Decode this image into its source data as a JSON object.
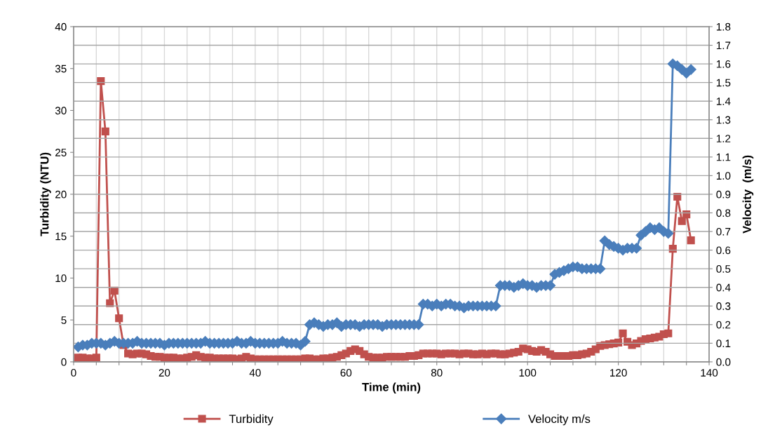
{
  "chart_data": {
    "type": "line",
    "xlabel": "Time (min)",
    "ylabel": "Turbidity (NTU)",
    "y2label": "Velocity  (m/s)",
    "x": [
      1,
      2,
      3,
      4,
      5,
      6,
      7,
      8,
      9,
      10,
      11,
      12,
      13,
      14,
      15,
      16,
      17,
      18,
      19,
      20,
      21,
      22,
      23,
      24,
      25,
      26,
      27,
      28,
      29,
      30,
      31,
      32,
      33,
      34,
      35,
      36,
      37,
      38,
      39,
      40,
      41,
      42,
      43,
      44,
      45,
      46,
      47,
      48,
      49,
      50,
      51,
      52,
      53,
      54,
      55,
      56,
      57,
      58,
      59,
      60,
      61,
      62,
      63,
      64,
      65,
      66,
      67,
      68,
      69,
      70,
      71,
      72,
      73,
      74,
      75,
      76,
      77,
      78,
      79,
      80,
      81,
      82,
      83,
      84,
      85,
      86,
      87,
      88,
      89,
      90,
      91,
      92,
      93,
      94,
      95,
      96,
      97,
      98,
      99,
      100,
      101,
      102,
      103,
      104,
      105,
      106,
      107,
      108,
      109,
      110,
      111,
      112,
      113,
      114,
      115,
      116,
      117,
      118,
      119,
      120,
      121,
      122,
      123,
      124,
      125,
      126,
      127,
      128,
      129,
      130,
      131,
      132,
      133,
      134,
      135,
      136
    ],
    "series": [
      {
        "name": "Turbidity",
        "color": "#c0504d",
        "marker": "square",
        "values": [
          0.5,
          0.5,
          0.4,
          0.4,
          0.5,
          33.5,
          27.5,
          7,
          8.5,
          5.2,
          2,
          1,
          0.9,
          1,
          1,
          0.9,
          0.7,
          0.6,
          0.6,
          0.5,
          0.5,
          0.5,
          0.4,
          0.4,
          0.5,
          0.6,
          0.8,
          0.6,
          0.5,
          0.5,
          0.4,
          0.4,
          0.4,
          0.4,
          0.4,
          0.3,
          0.4,
          0.6,
          0.4,
          0.3,
          0.3,
          0.3,
          0.3,
          0.3,
          0.3,
          0.3,
          0.3,
          0.3,
          0.3,
          0.3,
          0.4,
          0.4,
          0.3,
          0.3,
          0.4,
          0.4,
          0.5,
          0.6,
          0.8,
          1.0,
          1.3,
          1.5,
          1.3,
          0.9,
          0.6,
          0.5,
          0.5,
          0.5,
          0.6,
          0.6,
          0.6,
          0.6,
          0.6,
          0.7,
          0.7,
          0.8,
          1.0,
          1.0,
          1.0,
          1.0,
          0.9,
          1.0,
          1.0,
          1.0,
          0.9,
          1.0,
          1.0,
          0.9,
          0.9,
          1.0,
          0.9,
          1.0,
          1.0,
          0.9,
          0.9,
          1.0,
          1.1,
          1.2,
          1.6,
          1.5,
          1.3,
          1.2,
          1.4,
          1.2,
          0.9,
          0.7,
          0.7,
          0.7,
          0.7,
          0.8,
          0.8,
          0.9,
          1.0,
          1.2,
          1.5,
          1.9,
          2.0,
          2.1,
          2.2,
          2.3,
          3.4,
          2.4,
          2.0,
          2.2,
          2.5,
          2.7,
          2.8,
          2.9,
          3.0,
          3.3,
          3.4,
          13.5,
          19.7,
          16.8,
          17.6,
          14.5
        ]
      },
      {
        "name": "Velocity m/s",
        "color": "#4a7ebb",
        "marker": "diamond",
        "axis": "y2",
        "values": [
          0.08,
          0.09,
          0.09,
          0.1,
          0.1,
          0.1,
          0.09,
          0.1,
          0.11,
          0.1,
          0.1,
          0.1,
          0.1,
          0.11,
          0.1,
          0.1,
          0.1,
          0.1,
          0.1,
          0.09,
          0.1,
          0.1,
          0.1,
          0.1,
          0.1,
          0.1,
          0.1,
          0.1,
          0.11,
          0.1,
          0.1,
          0.1,
          0.1,
          0.1,
          0.1,
          0.11,
          0.1,
          0.1,
          0.11,
          0.1,
          0.1,
          0.1,
          0.1,
          0.1,
          0.1,
          0.11,
          0.1,
          0.1,
          0.1,
          0.09,
          0.11,
          0.2,
          0.21,
          0.2,
          0.19,
          0.2,
          0.2,
          0.21,
          0.19,
          0.2,
          0.2,
          0.2,
          0.19,
          0.2,
          0.2,
          0.2,
          0.2,
          0.19,
          0.2,
          0.2,
          0.2,
          0.2,
          0.2,
          0.2,
          0.2,
          0.2,
          0.31,
          0.31,
          0.3,
          0.31,
          0.3,
          0.31,
          0.31,
          0.3,
          0.3,
          0.29,
          0.3,
          0.3,
          0.3,
          0.3,
          0.3,
          0.3,
          0.3,
          0.41,
          0.41,
          0.41,
          0.4,
          0.41,
          0.42,
          0.41,
          0.41,
          0.4,
          0.41,
          0.41,
          0.41,
          0.47,
          0.48,
          0.49,
          0.5,
          0.51,
          0.51,
          0.5,
          0.5,
          0.5,
          0.5,
          0.5,
          0.65,
          0.63,
          0.62,
          0.61,
          0.6,
          0.61,
          0.61,
          0.61,
          0.68,
          0.7,
          0.72,
          0.71,
          0.72,
          0.7,
          0.69,
          1.6,
          1.59,
          1.57,
          1.55,
          1.57
        ]
      }
    ],
    "xlim": [
      0,
      140
    ],
    "xticks": [
      0,
      {
        "value": 5,
        "label": null
      },
      {
        "value": 10,
        "label": null
      },
      {
        "value": 15,
        "label": null
      },
      20,
      {
        "value": 25,
        "label": null
      },
      {
        "value": 30,
        "label": null
      },
      {
        "value": 35,
        "label": null
      },
      40,
      {
        "value": 45,
        "label": null
      },
      {
        "value": 50,
        "label": null
      },
      {
        "value": 55,
        "label": null
      },
      60,
      {
        "value": 65,
        "label": null
      },
      {
        "value": 70,
        "label": null
      },
      {
        "value": 75,
        "label": null
      },
      80,
      {
        "value": 85,
        "label": null
      },
      {
        "value": 90,
        "label": null
      },
      {
        "value": 95,
        "label": null
      },
      100,
      {
        "value": 105,
        "label": null
      },
      {
        "value": 110,
        "label": null
      },
      {
        "value": 115,
        "label": null
      },
      120,
      {
        "value": 125,
        "label": null
      },
      {
        "value": 130,
        "label": null
      },
      {
        "value": 135,
        "label": null
      },
      140
    ],
    "ylim": [
      0,
      40
    ],
    "yticks": [
      0,
      5,
      10,
      15,
      20,
      25,
      30,
      35,
      40
    ],
    "y2lim": [
      0,
      1.8
    ],
    "y2ticks": [
      {
        "value": 0,
        "label": "0.0"
      },
      0.1,
      0.2,
      0.3,
      0.4,
      0.5,
      0.6,
      0.7,
      0.8,
      0.9,
      {
        "value": 1,
        "label": "1.0"
      },
      1.1,
      1.2,
      1.3,
      1.4,
      1.5,
      1.6,
      1.7,
      1.8
    ],
    "grid": true,
    "legend": "bottom",
    "line_style": "solid"
  }
}
